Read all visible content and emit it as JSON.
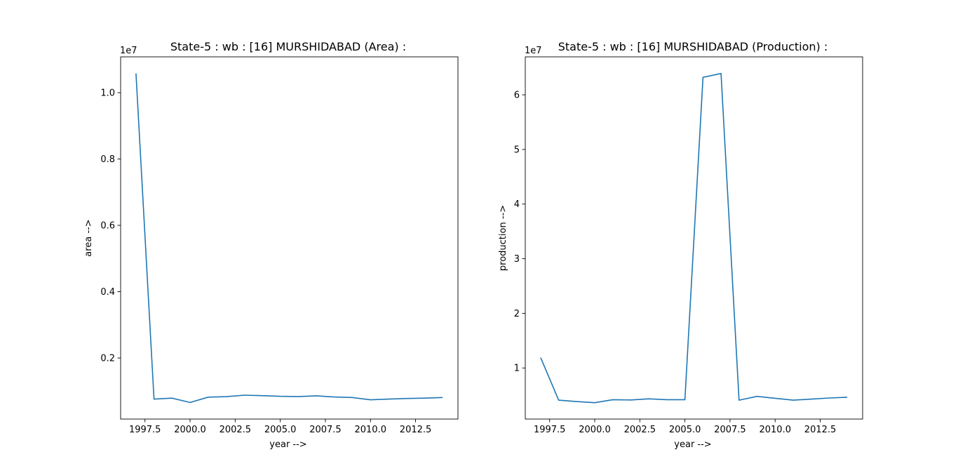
{
  "chart_data": [
    {
      "type": "line",
      "title": "State-5 : wb : [16] MURSHIDABAD (Area) :",
      "xlabel": "year -->",
      "ylabel": "area -->",
      "offset_text": "1e7",
      "x": [
        1997,
        1998,
        1999,
        2000,
        2001,
        2002,
        2003,
        2004,
        2005,
        2006,
        2007,
        2008,
        2009,
        2010,
        2011,
        2012,
        2013,
        2014
      ],
      "series": [
        {
          "values": [
            10580000,
            760000,
            790000,
            660000,
            820000,
            835000,
            880000,
            865000,
            845000,
            840000,
            860000,
            825000,
            810000,
            740000,
            760000,
            780000,
            790000,
            810000
          ]
        }
      ],
      "xticks": [
        1997.5,
        2000.0,
        2002.5,
        2005.0,
        2007.5,
        2010.0,
        2012.5
      ],
      "xtick_labels": [
        "1997.5",
        "2000.0",
        "2002.5",
        "2005.0",
        "2007.5",
        "2010.0",
        "2012.5"
      ],
      "yticks": [
        2000000,
        4000000,
        6000000,
        8000000,
        10000000
      ],
      "ytick_labels": [
        "0.2",
        "0.4",
        "0.6",
        "0.8",
        "1.0"
      ],
      "xlim": [
        1996.15,
        2014.85
      ],
      "ylim": [
        160000,
        11080000
      ],
      "grid": false,
      "line_color": "#1f77b4"
    },
    {
      "type": "line",
      "title": "State-5 : wb : [16] MURSHIDABAD (Production) :",
      "xlabel": "year -->",
      "ylabel": "production -->",
      "offset_text": "1e7",
      "x": [
        1997,
        1998,
        1999,
        2000,
        2001,
        2002,
        2003,
        2004,
        2005,
        2006,
        2007,
        2008,
        2009,
        2010,
        2011,
        2012,
        2013,
        2014
      ],
      "series": [
        {
          "values": [
            11900000,
            4100000,
            3850000,
            3650000,
            4200000,
            4150000,
            4350000,
            4200000,
            4200000,
            63200000,
            63900000,
            4100000,
            4800000,
            4450000,
            4100000,
            4300000,
            4500000,
            4650000
          ]
        }
      ],
      "xticks": [
        1997.5,
        2000.0,
        2002.5,
        2005.0,
        2007.5,
        2010.0,
        2012.5
      ],
      "xtick_labels": [
        "1997.5",
        "2000.0",
        "2002.5",
        "2005.0",
        "2007.5",
        "2010.0",
        "2012.5"
      ],
      "yticks": [
        10000000,
        20000000,
        30000000,
        40000000,
        50000000,
        60000000
      ],
      "ytick_labels": [
        "1",
        "2",
        "3",
        "4",
        "5",
        "6"
      ],
      "xlim": [
        1996.15,
        2014.85
      ],
      "ylim": [
        650000,
        66950000
      ],
      "grid": false,
      "line_color": "#1f77b4"
    }
  ]
}
